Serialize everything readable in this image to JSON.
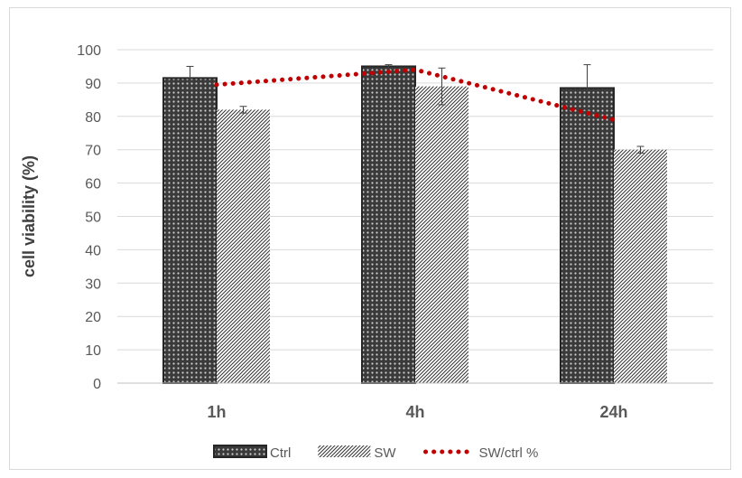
{
  "chart_data": {
    "type": "bar",
    "title": "",
    "xlabel": "",
    "ylabel": "cell viability (%)",
    "ylim": [
      0,
      100
    ],
    "yticks": [
      0,
      10,
      20,
      30,
      40,
      50,
      60,
      70,
      80,
      90,
      100
    ],
    "categories": [
      "1h",
      "4h",
      "24h"
    ],
    "series": [
      {
        "name": "Ctrl",
        "kind": "bar",
        "pattern": "crosshatch-dark",
        "values": [
          91.5,
          95,
          88.5
        ],
        "error": [
          3.5,
          0.5,
          7
        ]
      },
      {
        "name": "SW",
        "kind": "bar",
        "pattern": "diagonal-light",
        "values": [
          82,
          89,
          70
        ],
        "error": [
          1,
          5.5,
          1
        ]
      },
      {
        "name": "SW/ctrl %",
        "kind": "line",
        "style": "dotted",
        "color": "#c00000",
        "values": [
          89.5,
          94,
          79
        ]
      }
    ],
    "grid": true,
    "legend": "bottom",
    "colors": {
      "gridline": "#d9d9d9",
      "bar_border": "#262626",
      "line": "#c00000"
    }
  }
}
